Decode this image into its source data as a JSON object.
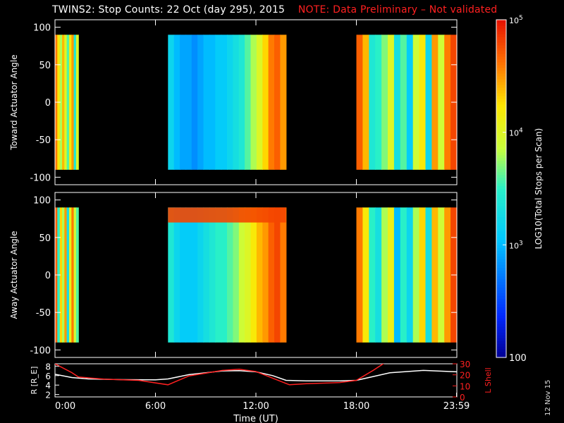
{
  "header": {
    "title": "TWINS2: Stop Counts: 22 Oct (day 295), 2015",
    "note": "NOTE: Data Preliminary – Not validated"
  },
  "stamp": "12 Nov 15",
  "colors": {
    "background": "#000000",
    "axes": "#ffffff",
    "note": "#ff2020",
    "r_line": "#ffffff",
    "lshell_line": "#ff2020"
  },
  "chart_data": [
    {
      "type": "heatmap",
      "title": "TWINS2: Stop Counts: 22 Oct (day 295), 2015",
      "ylabel": "Toward Actuator Angle",
      "xlim": [
        0,
        24
      ],
      "ylim": [
        -110,
        110
      ],
      "yticks": [
        -100,
        -50,
        0,
        50,
        100
      ],
      "data_blocks_hours": [
        [
          0.0,
          1.4
        ],
        [
          6.75,
          13.8
        ],
        [
          18.0,
          24.0
        ]
      ],
      "angle_range": [
        -90,
        90
      ],
      "log10_count_columns": {
        "block1": [
          4.6,
          4.2,
          3.8,
          4.4,
          4.0,
          3.6,
          4.2,
          4.5,
          3.4,
          4.0
        ],
        "block2": [
          3.2,
          3.0,
          2.9,
          2.9,
          2.8,
          2.9,
          3.0,
          3.0,
          3.1,
          3.1,
          3.2,
          3.3,
          3.4,
          3.6,
          3.8,
          4.0,
          4.3,
          4.6,
          4.7,
          4.5
        ],
        "block3": [
          4.7,
          4.4,
          3.4,
          3.5,
          3.7,
          4.0,
          3.3,
          3.6,
          3.1,
          3.9,
          4.2,
          3.2,
          4.5,
          3.9,
          4.6,
          4.8
        ]
      }
    },
    {
      "type": "heatmap",
      "ylabel": "Away Actuator Angle",
      "xlim": [
        0,
        24
      ],
      "ylim": [
        -110,
        110
      ],
      "yticks": [
        -100,
        -50,
        0,
        50,
        100
      ],
      "data_blocks_hours": [
        [
          0.0,
          1.4
        ],
        [
          6.75,
          13.8
        ],
        [
          18.0,
          24.0
        ]
      ],
      "angle_range": [
        -90,
        90
      ],
      "log10_count_columns": {
        "block1": [
          4.7,
          3.5,
          4.3,
          3.8,
          4.5,
          3.3,
          4.1,
          4.6,
          3.9,
          3.6
        ],
        "block2": [
          3.4,
          3.2,
          3.1,
          3.1,
          3.1,
          3.2,
          3.3,
          3.4,
          3.5,
          3.5,
          3.6,
          3.7,
          3.9,
          4.0,
          4.2,
          4.4,
          4.5,
          4.7,
          4.8,
          4.6
        ],
        "block3": [
          4.6,
          4.2,
          3.5,
          3.3,
          3.8,
          4.1,
          3.0,
          3.5,
          3.2,
          3.8,
          4.3,
          3.3,
          4.4,
          3.9,
          4.5,
          4.8
        ]
      },
      "high_band": {
        "angle_range": [
          70,
          90
        ],
        "log10_count": 4.8
      }
    },
    {
      "type": "line",
      "xlabel": "Time (UT)",
      "ylabel": "R [R_E]",
      "ylabel_right": "L Shell",
      "xlim": [
        0,
        24
      ],
      "ylim": [
        1.5,
        8.5
      ],
      "ylim_right": [
        0,
        30
      ],
      "yticks": [
        2,
        4,
        6,
        8
      ],
      "yticks_right": [
        0,
        10,
        20,
        30
      ],
      "xtick_labels": [
        "0:00",
        "6:00",
        "12:00",
        "18:00",
        "23:59"
      ],
      "xtick_values": [
        0,
        6,
        12,
        18,
        23.98
      ],
      "series": [
        {
          "name": "R",
          "x": [
            0,
            1,
            2,
            4,
            6,
            6.75,
            8,
            10,
            11,
            12,
            13,
            13.8,
            15,
            17,
            18,
            19,
            20,
            22,
            24
          ],
          "y": [
            6.3,
            5.6,
            5.3,
            5.15,
            5.1,
            5.3,
            6.2,
            7.0,
            7.05,
            6.8,
            6.0,
            5.0,
            4.9,
            4.9,
            5.0,
            5.8,
            6.6,
            7.1,
            6.8
          ]
        },
        {
          "name": "L Shell",
          "x": [
            0,
            1,
            1.4,
            3,
            5,
            6.75,
            8,
            10,
            11,
            12,
            13,
            14,
            15,
            17,
            18,
            19,
            19.8
          ],
          "y": [
            30,
            22,
            18,
            16,
            15,
            11,
            19,
            24,
            25,
            23,
            17,
            11,
            12,
            13,
            15,
            24,
            32
          ]
        }
      ]
    },
    {
      "type": "heatmap",
      "title": "colorbar",
      "ylabel": "LOG10(Total Stops per Scan)",
      "scale": "log",
      "ylim": [
        100,
        100000
      ],
      "tick_labels": [
        "100",
        "10^3",
        "10^4",
        "10^5"
      ]
    }
  ]
}
